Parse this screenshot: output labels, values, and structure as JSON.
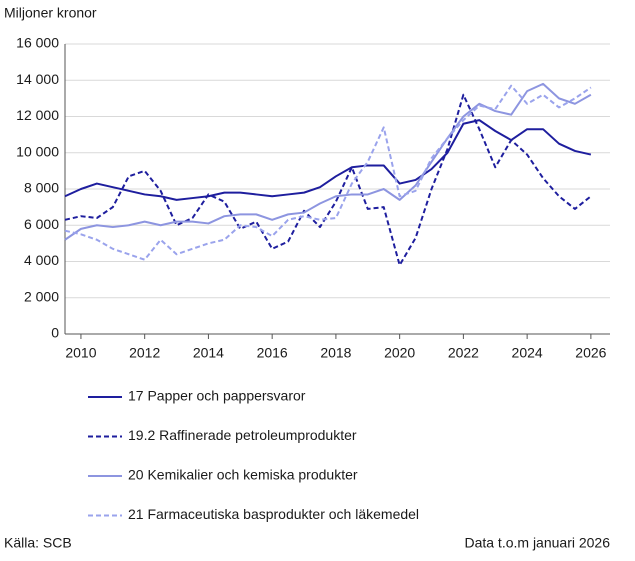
{
  "chart_data": {
    "type": "line",
    "y_label": "Miljoner kronor",
    "source": "Källa: SCB",
    "note": "Data t.o.m januari 2026",
    "x": [
      2009.5,
      2010,
      2010.5,
      2011,
      2011.5,
      2012,
      2012.5,
      2013,
      2013.5,
      2014,
      2014.5,
      2015,
      2015.5,
      2016,
      2016.5,
      2017,
      2017.5,
      2018,
      2018.5,
      2019,
      2019.5,
      2020,
      2020.5,
      2021,
      2021.5,
      2022,
      2022.5,
      2023,
      2023.5,
      2024,
      2024.5,
      2025,
      2025.5,
      2026
    ],
    "series": [
      {
        "name": "17 Papper och pappersvaror",
        "color": "#1e1e9e",
        "dashed": false,
        "values": [
          7600,
          8000,
          8300,
          8100,
          7900,
          7700,
          7600,
          7400,
          7500,
          7600,
          7800,
          7800,
          7700,
          7600,
          7700,
          7800,
          8100,
          8700,
          9200,
          9300,
          9300,
          8300,
          8500,
          9100,
          10000,
          11600,
          11800,
          11200,
          10700,
          11300,
          11300,
          10500,
          10100,
          9900
        ]
      },
      {
        "name": "19.2 Raffinerade petroleumprodukter",
        "color": "#1e1e9e",
        "dashed": true,
        "values": [
          6300,
          6500,
          6400,
          7000,
          8700,
          9000,
          7900,
          6000,
          6400,
          7700,
          7300,
          5800,
          6200,
          4700,
          5100,
          6800,
          5900,
          7300,
          9200,
          6900,
          7000,
          3800,
          5300,
          8000,
          10200,
          13200,
          11300,
          9200,
          10700,
          9900,
          8600,
          7600,
          6900,
          7600
        ]
      },
      {
        "name": "20 Kemikalier och kemiska produkter",
        "color": "#8d95e0",
        "dashed": false,
        "values": [
          5200,
          5800,
          6000,
          5900,
          6000,
          6200,
          6000,
          6200,
          6200,
          6100,
          6500,
          6600,
          6600,
          6300,
          6600,
          6700,
          7200,
          7600,
          7700,
          7700,
          8000,
          7400,
          8200,
          9500,
          10800,
          12000,
          12700,
          12300,
          12100,
          13400,
          13800,
          13000,
          12700,
          13200
        ]
      },
      {
        "name": "21 Farmaceutiska basprodukter och läkemedel",
        "color": "#9aa3ec",
        "dashed": true,
        "values": [
          5700,
          5500,
          5200,
          4700,
          4400,
          4100,
          5200,
          4400,
          4700,
          5000,
          5200,
          6000,
          5900,
          5400,
          6300,
          6500,
          6300,
          6400,
          8300,
          9500,
          11400,
          7600,
          7900,
          9700,
          10800,
          11800,
          12600,
          12400,
          13700,
          12700,
          13200,
          12500,
          13000,
          13600
        ]
      }
    ],
    "xlim": [
      2009.5,
      2026.6
    ],
    "xticks": [
      2010,
      2012,
      2014,
      2016,
      2018,
      2020,
      2022,
      2024,
      2026
    ],
    "ylim": [
      0,
      16000
    ],
    "yticks": [
      0,
      {
        "value": 2000,
        "label": "2 000"
      },
      {
        "value": 4000,
        "label": "4 000"
      },
      {
        "value": 6000,
        "label": "6 000"
      },
      {
        "value": 8000,
        "label": "8 000"
      },
      {
        "value": 10000,
        "label": "10 000"
      },
      {
        "value": 12000,
        "label": "12 000"
      },
      {
        "value": 14000,
        "label": "14 000"
      },
      {
        "value": 16000,
        "label": "16 000"
      }
    ],
    "grid": true
  }
}
